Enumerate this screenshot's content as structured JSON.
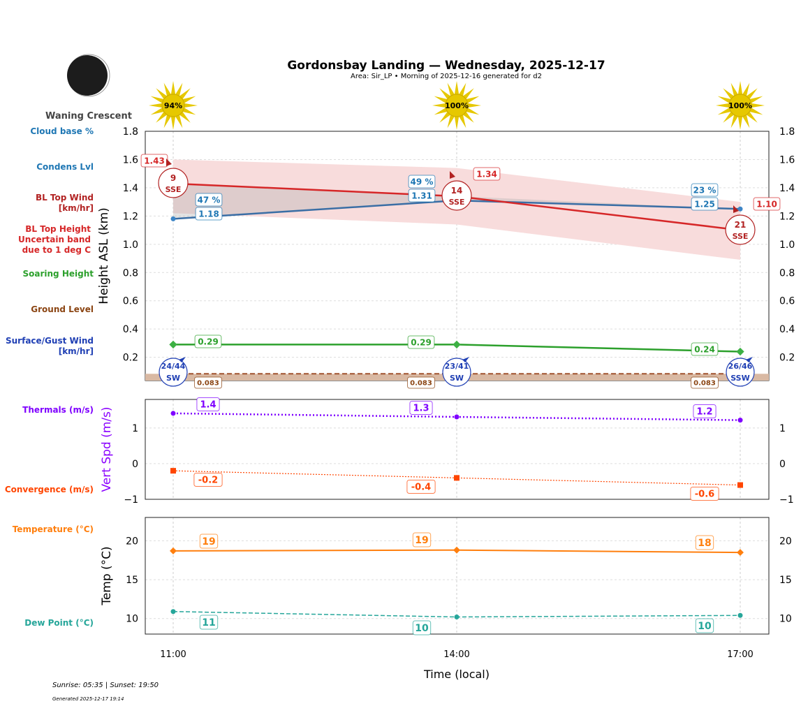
{
  "header": {
    "title": "Gordonsbay Landing — Wednesday, 2025-12-17",
    "subtitle": "Area: Sir_LP • Morning of 2025-12-16 generated for d2",
    "moon_phase": "Waning Crescent"
  },
  "footer": {
    "sun_times": "Sunrise: 05:35 | Sunset: 19:50",
    "generated": "Generated 2025-12-17 19:14"
  },
  "legend_labels": [
    {
      "text": "Cloud base %",
      "color": "#1f77b4"
    },
    {
      "text": "Condens Lvl",
      "color": "#1f77b4"
    },
    {
      "text": "BL Top Wind\n[km/hr]",
      "color": "#b22222"
    },
    {
      "text": "BL Top Height\nUncertain band\ndue to 1 deg C",
      "color": "#d62728"
    },
    {
      "text": "Soaring Height",
      "color": "#2ca02c"
    },
    {
      "text": "Ground Level",
      "color": "#8b4513"
    },
    {
      "text": "Surface/Gust Wind\n[km/hr]",
      "color": "#1f3fb4"
    },
    {
      "text": "Thermals (m/s)",
      "color": "#7f00ff"
    },
    {
      "text": "Convergence (m/s)",
      "color": "#ff4500"
    },
    {
      "text": "Temperature (°C)",
      "color": "#ff7f0e"
    },
    {
      "text": "Dew Point (°C)",
      "color": "#26a69a"
    }
  ],
  "chart_data": [
    {
      "type": "line",
      "ylabel": "Height ASL (km)",
      "ylim": [
        0.035,
        1.8
      ],
      "yticks": [
        0.2,
        0.4,
        0.6,
        0.8,
        1.0,
        1.2,
        1.4,
        1.6,
        1.8
      ],
      "x": [
        "11:00",
        "14:00",
        "17:00"
      ],
      "grid": true,
      "sun_percent": [
        "94%",
        "100%",
        "100%"
      ],
      "series": [
        {
          "name": "BL Top Height",
          "color": "#d62728",
          "values": [
            1.43,
            1.34,
            1.1
          ],
          "labels": [
            "1.43",
            "1.34",
            "1.10"
          ]
        },
        {
          "name": "Uncertain band",
          "color": "#f8dcdc",
          "upper": [
            1.6,
            1.54,
            1.3
          ],
          "lower": [
            1.22,
            1.14,
            0.89
          ]
        },
        {
          "name": "Condens Lvl",
          "color": "#3a6ea5",
          "values": [
            1.18,
            1.31,
            1.25
          ],
          "labels": [
            "1.18",
            "1.31",
            "1.25"
          ]
        },
        {
          "name": "Cloud base %",
          "color": "#1f77b4",
          "labels": [
            "47 %",
            "49 %",
            "23 %"
          ]
        },
        {
          "name": "Soaring Height",
          "color": "#2ca02c",
          "values": [
            0.29,
            0.29,
            0.24
          ],
          "labels": [
            "0.29",
            "0.29",
            "0.24"
          ]
        },
        {
          "name": "Ground Level",
          "color": "#8b4513",
          "values": [
            0.083,
            0.083,
            0.083
          ],
          "labels": [
            "0.083",
            "0.083",
            "0.083"
          ]
        }
      ],
      "bl_top_wind": [
        {
          "speed": "9",
          "dir": "SSE"
        },
        {
          "speed": "14",
          "dir": "SSE"
        },
        {
          "speed": "21",
          "dir": "SSE"
        }
      ],
      "surface_wind": [
        {
          "speed": "24/44",
          "dir": "SW"
        },
        {
          "speed": "23/41",
          "dir": "SW"
        },
        {
          "speed": "26/46",
          "dir": "SSW"
        }
      ]
    },
    {
      "type": "line",
      "ylabel": "Vert Spd (m/s)",
      "ylim": [
        -1,
        1.8
      ],
      "yticks": [
        -1,
        0,
        1
      ],
      "x": [
        "11:00",
        "14:00",
        "17:00"
      ],
      "grid": true,
      "series": [
        {
          "name": "Thermals (m/s)",
          "color": "#7f00ff",
          "values": [
            1.41,
            1.31,
            1.22
          ],
          "labels": [
            "1.4",
            "1.3",
            "1.2"
          ]
        },
        {
          "name": "Convergence (m/s)",
          "color": "#ff4500",
          "values": [
            -0.2,
            -0.4,
            -0.6
          ],
          "labels": [
            "-0.2",
            "-0.4",
            "-0.6"
          ]
        }
      ]
    },
    {
      "type": "line",
      "ylabel": "Temp (°C)",
      "xlabel": "Time (local)",
      "ylim": [
        8,
        23
      ],
      "yticks": [
        10,
        15,
        20
      ],
      "x": [
        "11:00",
        "14:00",
        "17:00"
      ],
      "grid": true,
      "series": [
        {
          "name": "Temperature (°C)",
          "color": "#ff7f0e",
          "values": [
            18.7,
            18.8,
            18.5
          ],
          "labels": [
            "19",
            "19",
            "18"
          ]
        },
        {
          "name": "Dew Point (°C)",
          "color": "#26a69a",
          "values": [
            10.9,
            10.2,
            10.4
          ],
          "labels": [
            "11",
            "10",
            "10"
          ]
        }
      ]
    }
  ]
}
